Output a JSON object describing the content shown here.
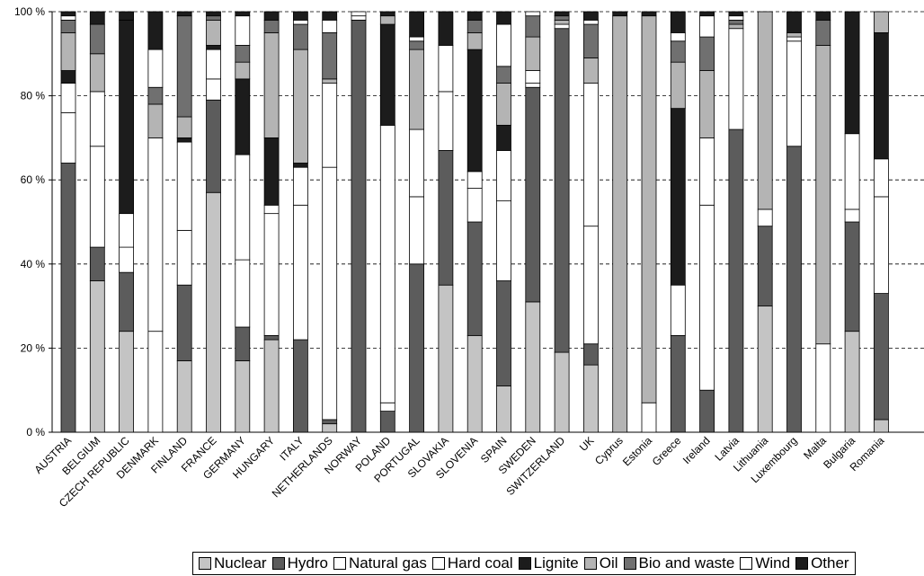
{
  "chart_data": {
    "type": "stacked_bar",
    "categories": [
      "AUSTRIA",
      "BELGIUM",
      "CZECH REPUBLIC",
      "DENMARK",
      "FINLAND",
      "FRANCE",
      "GERMANY",
      "HUNGARY",
      "ITALY",
      "NETHERLANDS",
      "NORWAY",
      "POLAND",
      "PORTUGAL",
      "SLOVAKIA",
      "SLOVENIA",
      "SPAIN",
      "SWEDEN",
      "SWITZERLAND",
      "UK",
      "Cyprus",
      "Estonia",
      "Greece",
      "Ireland",
      "Latvia",
      "Lithuania",
      "Luxembourg",
      "Malta",
      "Bulgaria",
      "Romania"
    ],
    "series": [
      {
        "name": "Nuclear",
        "color": "#c4c4c4",
        "values": [
          0,
          36,
          24,
          0,
          17,
          57,
          17,
          22,
          0,
          2,
          0,
          0,
          0,
          35,
          23,
          11,
          31,
          19,
          16,
          0,
          0,
          0,
          0,
          0,
          30,
          0,
          0,
          24,
          3
        ]
      },
      {
        "name": "Hydro",
        "color": "#5c5c5c",
        "values": [
          64,
          8,
          14,
          0,
          18,
          22,
          8,
          1,
          22,
          1,
          98,
          5,
          40,
          32,
          27,
          25,
          51,
          77,
          5,
          0,
          0,
          23,
          10,
          72,
          19,
          68,
          0,
          26,
          30
        ]
      },
      {
        "name": "Natural gas",
        "color": "#ffffff",
        "values": [
          12,
          24,
          6,
          24,
          13,
          5,
          16,
          29,
          32,
          60,
          1,
          2,
          16,
          14,
          8,
          19,
          1,
          1,
          28,
          0,
          7,
          12,
          44,
          24,
          4,
          25,
          21,
          3,
          23
        ]
      },
      {
        "name": "Hard coal",
        "color": "#ffffff",
        "values": [
          7,
          13,
          8,
          46,
          21,
          7,
          25,
          2,
          9,
          20,
          0,
          66,
          16,
          11,
          4,
          12,
          3,
          0,
          34,
          0,
          0,
          0,
          16,
          0,
          0,
          1,
          0,
          18,
          9
        ]
      },
      {
        "name": "Lignite",
        "color": "#1c1c1c",
        "values": [
          3,
          0,
          46,
          0,
          1,
          1,
          18,
          16,
          1,
          0,
          0,
          24,
          0,
          8,
          29,
          6,
          0,
          0,
          0,
          0,
          0,
          42,
          0,
          0,
          0,
          0,
          0,
          29,
          30
        ]
      },
      {
        "name": "Oil",
        "color": "#b4b4b4",
        "values": [
          9,
          9,
          0,
          8,
          5,
          6,
          4,
          25,
          27,
          1,
          0,
          2,
          19,
          0,
          4,
          10,
          8,
          1,
          6,
          99,
          92,
          11,
          16,
          1,
          47,
          1,
          71,
          0,
          5
        ]
      },
      {
        "name": "Bio and waste",
        "color": "#707070",
        "values": [
          3,
          7,
          0,
          4,
          24,
          1,
          4,
          3,
          6,
          11,
          0,
          0,
          2,
          0,
          3,
          4,
          5,
          1,
          8,
          0,
          0,
          5,
          8,
          1,
          0,
          0,
          6,
          0,
          0
        ]
      },
      {
        "name": "Wind",
        "color": "#ffffff",
        "values": [
          1,
          0,
          0,
          9,
          0,
          0,
          7,
          0,
          1,
          3,
          1,
          0,
          1,
          0,
          0,
          10,
          1,
          0,
          1,
          0,
          0,
          2,
          5,
          1,
          0,
          0,
          0,
          0,
          0
        ]
      },
      {
        "name": "Other",
        "color": "#1c1c1c",
        "values": [
          1,
          3,
          2,
          9,
          1,
          1,
          1,
          2,
          2,
          2,
          0,
          1,
          6,
          0,
          2,
          3,
          0,
          1,
          2,
          1,
          1,
          5,
          1,
          1,
          0,
          5,
          2,
          0,
          0
        ]
      }
    ],
    "ylim": [
      0,
      100
    ],
    "yticks": [
      {
        "value": 0,
        "label": "0 %"
      },
      {
        "value": 20,
        "label": "20 %"
      },
      {
        "value": 40,
        "label": "40 %"
      },
      {
        "value": 60,
        "label": "60 %"
      },
      {
        "value": 80,
        "label": "80 %"
      },
      {
        "value": 100,
        "label": "100 %"
      }
    ],
    "grid": true,
    "legend": "bottom"
  }
}
